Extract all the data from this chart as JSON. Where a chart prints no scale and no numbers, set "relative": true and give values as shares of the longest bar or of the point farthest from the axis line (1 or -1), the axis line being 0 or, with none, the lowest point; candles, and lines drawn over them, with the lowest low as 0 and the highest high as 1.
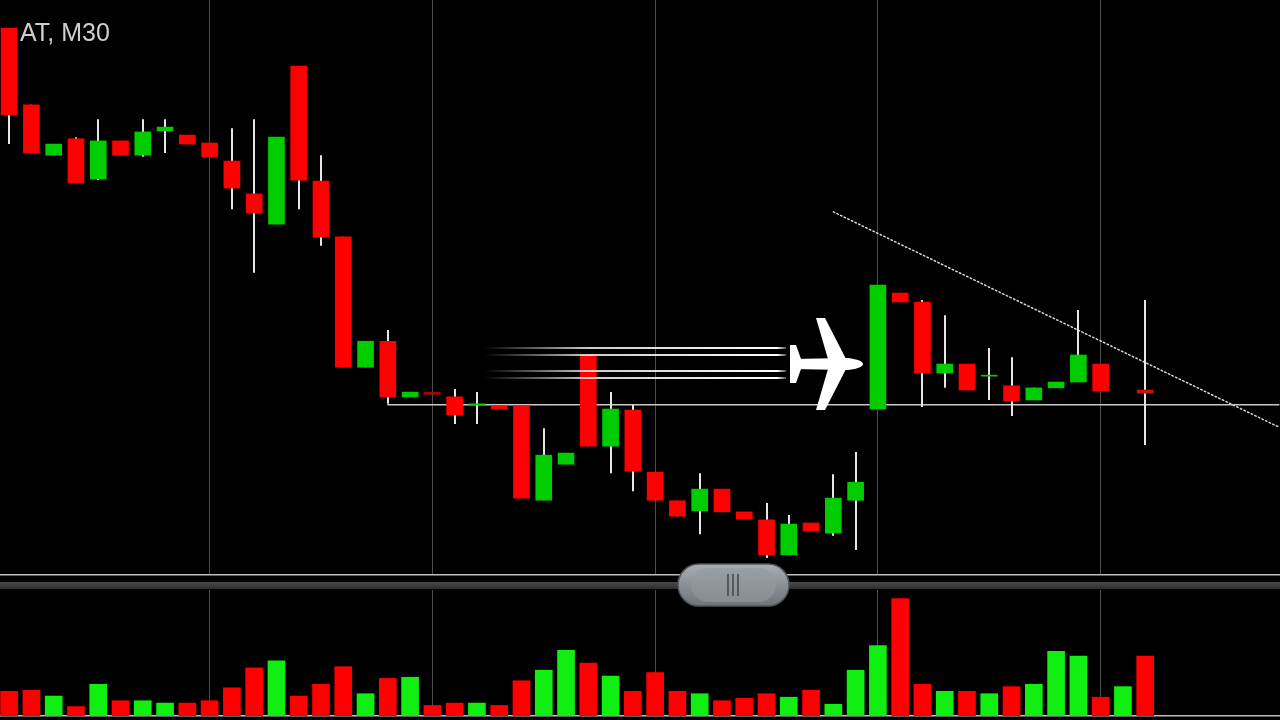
{
  "chart_data": [
    {
      "type": "candlestick",
      "title": "AT, M30",
      "relative": true,
      "grid": true,
      "categories": [
        null,
        null,
        null,
        null,
        null,
        null,
        null,
        null,
        null,
        null,
        null,
        null,
        null,
        null,
        null,
        null,
        null,
        null,
        null,
        null,
        null,
        null,
        null,
        null,
        null,
        null,
        null,
        null,
        null,
        null,
        null,
        null,
        null,
        null,
        null,
        null,
        null,
        null,
        null,
        null,
        null,
        null,
        null,
        null,
        null,
        null,
        null,
        null,
        null,
        null,
        null,
        null,
        null,
        null,
        null,
        null,
        null,
        null
      ],
      "ohlc": [
        [
          1.0,
          1.0,
          0.781,
          0.836
        ],
        [
          0.855,
          0.855,
          0.764,
          0.764
        ],
        [
          0.76,
          0.781,
          0.76,
          0.781
        ],
        [
          0.791,
          0.794,
          0.708,
          0.708
        ],
        [
          0.715,
          0.828,
          0.713,
          0.787
        ],
        [
          0.787,
          0.787,
          0.76,
          0.76
        ],
        [
          0.76,
          0.828,
          0.757,
          0.804
        ],
        [
          0.806,
          0.828,
          0.764,
          0.813
        ],
        [
          0.798,
          0.798,
          0.781,
          0.781
        ],
        [
          0.783,
          0.783,
          0.757,
          0.757
        ],
        [
          0.749,
          0.811,
          0.658,
          0.698
        ],
        [
          0.687,
          0.828,
          0.538,
          0.651
        ],
        [
          0.63,
          0.794,
          0.63,
          0.794
        ],
        [
          0.928,
          0.928,
          0.658,
          0.713
        ],
        [
          0.711,
          0.76,
          0.589,
          0.606
        ],
        [
          0.606,
          0.606,
          0.36,
          0.36
        ],
        [
          0.36,
          0.409,
          0.36,
          0.409
        ],
        [
          0.409,
          0.43,
          0.291,
          0.304
        ],
        [
          0.304,
          0.313,
          0.304,
          0.313
        ],
        [
          0.313,
          0.313,
          0.309,
          0.309
        ],
        [
          0.304,
          0.319,
          0.253,
          0.27
        ],
        [
          0.289,
          0.313,
          0.253,
          0.291
        ],
        [
          0.287,
          0.287,
          0.281,
          0.281
        ],
        [
          0.287,
          0.287,
          0.113,
          0.113
        ],
        [
          0.109,
          0.245,
          0.109,
          0.194
        ],
        [
          0.177,
          0.198,
          0.177,
          0.198
        ],
        [
          0.383,
          0.383,
          0.211,
          0.211
        ],
        [
          0.211,
          0.313,
          0.16,
          0.281
        ],
        [
          0.279,
          0.289,
          0.126,
          0.164
        ],
        [
          0.162,
          0.162,
          0.109,
          0.109
        ],
        [
          0.108,
          0.108,
          0.079,
          0.079
        ],
        [
          0.089,
          0.16,
          0.045,
          0.13
        ],
        [
          0.13,
          0.13,
          0.087,
          0.087
        ],
        [
          0.087,
          0.087,
          0.074,
          0.074
        ],
        [
          0.072,
          0.104,
          0.0,
          0.006
        ],
        [
          0.006,
          0.081,
          0.006,
          0.064
        ],
        [
          0.066,
          0.066,
          0.051,
          0.051
        ],
        [
          0.047,
          0.158,
          0.042,
          0.113
        ],
        [
          0.109,
          0.2,
          0.015,
          0.143
        ],
        [
          0.281,
          0.515,
          0.281,
          0.515
        ],
        [
          0.5,
          0.5,
          0.483,
          0.483
        ],
        [
          0.483,
          0.487,
          0.285,
          0.349
        ],
        [
          0.349,
          0.458,
          0.321,
          0.366
        ],
        [
          0.366,
          0.366,
          0.317,
          0.317
        ],
        [
          0.343,
          0.396,
          0.298,
          0.345
        ],
        [
          0.325,
          0.379,
          0.268,
          0.296
        ],
        [
          0.298,
          0.321,
          0.298,
          0.321
        ],
        [
          0.321,
          0.332,
          0.321,
          0.332
        ],
        [
          0.332,
          0.468,
          0.332,
          0.383
        ],
        [
          0.366,
          0.366,
          0.315,
          0.315
        ],
        null,
        [
          0.317,
          0.487,
          0.213,
          0.311
        ],
        null,
        null,
        null,
        null,
        null,
        null
      ],
      "colors": [
        "#ff0000",
        "#ff0000",
        "#00cc00",
        "#ff0000",
        "#00cc00",
        "#ff0000",
        "#00cc00",
        "#00cc00",
        "#ff0000",
        "#ff0000",
        "#ff0000",
        "#ff0000",
        "#00cc00",
        "#ff0000",
        "#ff0000",
        "#ff0000",
        "#00cc00",
        "#ff0000",
        "#00cc00",
        "#b00000",
        "#ff0000",
        "#00cc00",
        "#ff0000",
        "#ff0000",
        "#00cc00",
        "#00cc00",
        "#ff0000",
        "#00cc00",
        "#ff0000",
        "#ff0000",
        "#ff0000",
        "#00cc00",
        "#ff0000",
        "#ff0000",
        "#ff0000",
        "#00cc00",
        "#ff0000",
        "#00cc00",
        "#00cc00",
        "#00cc00",
        "#ff0000",
        "#ff0000",
        "#00cc00",
        "#ff0000",
        "#00cc00",
        "#ff0000",
        "#00cc00",
        "#00cc00",
        "#00cc00",
        "#ff0000",
        null,
        "#c81010",
        null,
        null,
        null,
        null,
        null,
        null
      ],
      "series": [
        {
          "type": "line",
          "color": "#c8c8c8",
          "values": [
            null,
            null,
            null,
            null,
            null,
            null,
            null,
            null,
            null,
            null,
            null,
            null,
            null,
            null,
            null,
            null,
            null,
            0.289,
            null,
            null,
            null,
            null,
            null,
            null,
            null,
            null,
            null,
            null,
            null,
            null,
            null,
            null,
            null,
            null,
            null,
            null,
            null,
            null,
            null,
            null,
            null,
            null,
            null,
            null,
            null,
            null,
            null,
            null,
            null,
            null,
            null,
            null,
            null,
            null,
            null,
            null,
            null,
            0.289
          ]
        },
        {
          "type": "line",
          "color": "#d8d8d8",
          "line_style": "dotted",
          "values": [
            null,
            null,
            null,
            null,
            null,
            null,
            null,
            null,
            null,
            null,
            null,
            null,
            null,
            null,
            null,
            null,
            null,
            null,
            null,
            null,
            null,
            null,
            null,
            null,
            null,
            null,
            null,
            null,
            null,
            null,
            null,
            null,
            null,
            null,
            null,
            null,
            null,
            0.653,
            null,
            null,
            null,
            null,
            null,
            null,
            null,
            null,
            null,
            null,
            null,
            null,
            null,
            null,
            null,
            null,
            null,
            null,
            null,
            0.247
          ]
        }
      ]
    },
    {
      "type": "bar",
      "relative": true,
      "grid": true,
      "categories": [
        null,
        null,
        null,
        null,
        null,
        null,
        null,
        null,
        null,
        null,
        null,
        null,
        null,
        null,
        null,
        null,
        null,
        null,
        null,
        null,
        null,
        null,
        null,
        null,
        null,
        null,
        null,
        null,
        null,
        null,
        null,
        null,
        null,
        null,
        null,
        null,
        null,
        null,
        null,
        null,
        null,
        null,
        null,
        null,
        null,
        null,
        null,
        null,
        null,
        null,
        null,
        null,
        null,
        null,
        null,
        null,
        null,
        null
      ],
      "values": [
        0.21,
        0.22,
        0.17,
        0.08,
        0.27,
        0.13,
        0.13,
        0.11,
        0.11,
        0.13,
        0.24,
        0.41,
        0.47,
        0.17,
        0.27,
        0.42,
        0.19,
        0.32,
        0.33,
        0.09,
        0.11,
        0.11,
        0.09,
        0.3,
        0.39,
        0.56,
        0.45,
        0.34,
        0.21,
        0.37,
        0.21,
        0.19,
        0.13,
        0.15,
        0.19,
        0.16,
        0.22,
        0.1,
        0.39,
        0.6,
        1,
        0.27,
        0.21,
        0.21,
        0.19,
        0.25,
        0.27,
        0.55,
        0.51,
        0.16,
        0.25,
        0.51,
        null,
        null,
        null,
        null,
        null,
        null
      ],
      "colors": [
        "#ff0000",
        "#ff0000",
        "#11ee11",
        "#ff0000",
        "#11ee11",
        "#ff0000",
        "#11ee11",
        "#11ee11",
        "#ff0000",
        "#ff0000",
        "#ff0000",
        "#ff0000",
        "#11ee11",
        "#ff0000",
        "#ff0000",
        "#ff0000",
        "#11ee11",
        "#ff0000",
        "#11ee11",
        "#ff0000",
        "#ff0000",
        "#11ee11",
        "#ff0000",
        "#ff0000",
        "#11ee11",
        "#11ee11",
        "#ff0000",
        "#11ee11",
        "#ff0000",
        "#ff0000",
        "#ff0000",
        "#11ee11",
        "#ff0000",
        "#ff0000",
        "#ff0000",
        "#11ee11",
        "#ff0000",
        "#11ee11",
        "#11ee11",
        "#11ee11",
        "#ff0000",
        "#ff0000",
        "#11ee11",
        "#ff0000",
        "#11ee11",
        "#ff0000",
        "#11ee11",
        "#11ee11",
        "#11ee11",
        "#ff0000",
        "#11ee11",
        "#ff0000",
        null,
        null,
        null,
        null,
        null,
        null
      ]
    }
  ]
}
